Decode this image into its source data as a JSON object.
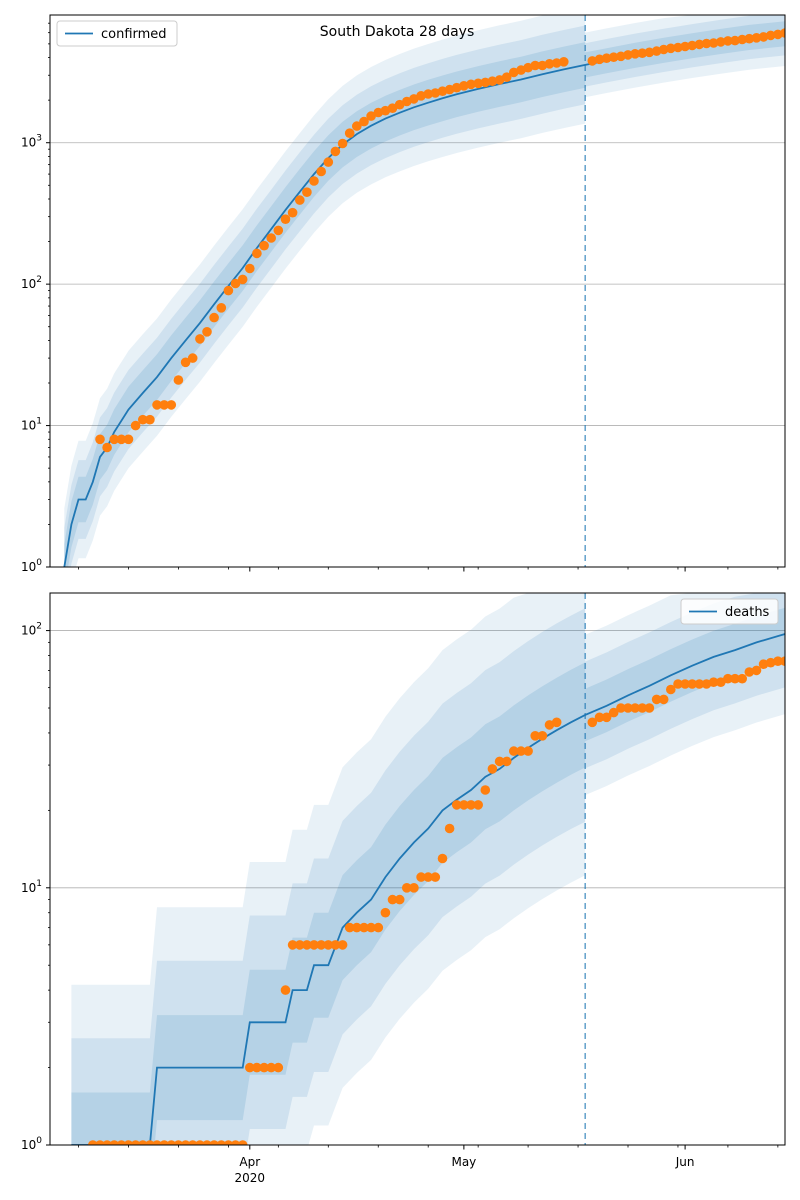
{
  "title": "South Dakota 28 days",
  "colors": {
    "model": "#1f77b4",
    "observed": "#ff7f0e",
    "band": "#1f77b4",
    "grid": "#b0b0b0",
    "forecast_line": "#1f77b4"
  },
  "x_ticks": [
    {
      "date": "2020-04-01",
      "label": "Apr",
      "sub": "2020"
    },
    {
      "date": "2020-05-01",
      "label": "May",
      "sub": ""
    },
    {
      "date": "2020-06-01",
      "label": "Jun",
      "sub": ""
    }
  ],
  "forecast_start": "2020-05-18",
  "chart_data": [
    {
      "type": "line",
      "legend": "confirmed",
      "legend_loc": "upper left",
      "yscale": "log",
      "xlim": [
        "2020-03-04",
        "2020-06-15"
      ],
      "ylim": [
        1,
        8000
      ],
      "yticks": [
        {
          "value": 1,
          "label": "10",
          "exp": "0"
        },
        {
          "value": 10,
          "label": "10",
          "exp": "1"
        },
        {
          "value": 100,
          "label": "10",
          "exp": "2"
        },
        {
          "value": 1000,
          "label": "10",
          "exp": "3"
        }
      ],
      "model_median": [
        [
          "2020-03-06",
          1
        ],
        [
          "2020-03-07",
          2
        ],
        [
          "2020-03-08",
          3
        ],
        [
          "2020-03-09",
          3
        ],
        [
          "2020-03-10",
          4
        ],
        [
          "2020-03-11",
          6
        ],
        [
          "2020-03-12",
          7
        ],
        [
          "2020-03-13",
          9
        ],
        [
          "2020-03-15",
          13
        ],
        [
          "2020-03-17",
          17
        ],
        [
          "2020-03-19",
          22
        ],
        [
          "2020-03-21",
          30
        ],
        [
          "2020-03-23",
          40
        ],
        [
          "2020-03-25",
          53
        ],
        [
          "2020-03-27",
          72
        ],
        [
          "2020-03-29",
          97
        ],
        [
          "2020-03-31",
          130
        ],
        [
          "2020-04-02",
          180
        ],
        [
          "2020-04-04",
          245
        ],
        [
          "2020-04-06",
          335
        ],
        [
          "2020-04-08",
          450
        ],
        [
          "2020-04-10",
          600
        ],
        [
          "2020-04-12",
          780
        ],
        [
          "2020-04-14",
          970
        ],
        [
          "2020-04-16",
          1150
        ],
        [
          "2020-04-18",
          1320
        ],
        [
          "2020-04-20",
          1480
        ],
        [
          "2020-04-22",
          1630
        ],
        [
          "2020-04-24",
          1780
        ],
        [
          "2020-04-26",
          1920
        ],
        [
          "2020-04-28",
          2060
        ],
        [
          "2020-04-30",
          2200
        ],
        [
          "2020-05-03",
          2400
        ],
        [
          "2020-05-06",
          2600
        ],
        [
          "2020-05-09",
          2800
        ],
        [
          "2020-05-12",
          3050
        ],
        [
          "2020-05-15",
          3300
        ],
        [
          "2020-05-18",
          3550
        ],
        [
          "2020-05-21",
          3800
        ],
        [
          "2020-05-25",
          4150
        ],
        [
          "2020-05-29",
          4500
        ],
        [
          "2020-06-02",
          4850
        ],
        [
          "2020-06-06",
          5200
        ],
        [
          "2020-06-10",
          5550
        ],
        [
          "2020-06-15",
          5900
        ]
      ],
      "observed": [
        [
          "2020-03-11",
          8
        ],
        [
          "2020-03-12",
          7
        ],
        [
          "2020-03-13",
          8
        ],
        [
          "2020-03-14",
          8
        ],
        [
          "2020-03-15",
          8
        ],
        [
          "2020-03-16",
          10
        ],
        [
          "2020-03-17",
          11
        ],
        [
          "2020-03-18",
          11
        ],
        [
          "2020-03-19",
          14
        ],
        [
          "2020-03-20",
          14
        ],
        [
          "2020-03-21",
          14
        ],
        [
          "2020-03-22",
          21
        ],
        [
          "2020-03-23",
          28
        ],
        [
          "2020-03-24",
          30
        ],
        [
          "2020-03-25",
          41
        ],
        [
          "2020-03-26",
          46
        ],
        [
          "2020-03-27",
          58
        ],
        [
          "2020-03-28",
          68
        ],
        [
          "2020-03-29",
          90
        ],
        [
          "2020-03-30",
          101
        ],
        [
          "2020-03-31",
          108
        ],
        [
          "2020-04-01",
          129
        ],
        [
          "2020-04-02",
          165
        ],
        [
          "2020-04-03",
          187
        ],
        [
          "2020-04-04",
          212
        ],
        [
          "2020-04-05",
          240
        ],
        [
          "2020-04-06",
          288
        ],
        [
          "2020-04-07",
          320
        ],
        [
          "2020-04-08",
          393
        ],
        [
          "2020-04-09",
          447
        ],
        [
          "2020-04-10",
          536
        ],
        [
          "2020-04-11",
          626
        ],
        [
          "2020-04-12",
          730
        ],
        [
          "2020-04-13",
          868
        ],
        [
          "2020-04-14",
          988
        ],
        [
          "2020-04-15",
          1168
        ],
        [
          "2020-04-16",
          1311
        ],
        [
          "2020-04-17",
          1411
        ],
        [
          "2020-04-18",
          1542
        ],
        [
          "2020-04-19",
          1635
        ],
        [
          "2020-04-20",
          1685
        ],
        [
          "2020-04-21",
          1755
        ],
        [
          "2020-04-22",
          1858
        ],
        [
          "2020-04-23",
          1956
        ],
        [
          "2020-04-24",
          2040
        ],
        [
          "2020-04-25",
          2147
        ],
        [
          "2020-04-26",
          2212
        ],
        [
          "2020-04-27",
          2245
        ],
        [
          "2020-04-28",
          2313
        ],
        [
          "2020-04-29",
          2373
        ],
        [
          "2020-04-30",
          2449
        ],
        [
          "2020-05-01",
          2525
        ],
        [
          "2020-05-02",
          2588
        ],
        [
          "2020-05-03",
          2631
        ],
        [
          "2020-05-04",
          2668
        ],
        [
          "2020-05-05",
          2721
        ],
        [
          "2020-05-06",
          2779
        ],
        [
          "2020-05-07",
          2905
        ],
        [
          "2020-05-08",
          3144
        ],
        [
          "2020-05-09",
          3262
        ],
        [
          "2020-05-10",
          3393
        ],
        [
          "2020-05-11",
          3517
        ],
        [
          "2020-05-12",
          3517
        ],
        [
          "2020-05-13",
          3614
        ],
        [
          "2020-05-14",
          3663
        ],
        [
          "2020-05-15",
          3732
        ],
        [
          "2020-05-19",
          3792
        ],
        [
          "2020-05-20",
          3887
        ],
        [
          "2020-05-21",
          3959
        ],
        [
          "2020-05-22",
          4027
        ],
        [
          "2020-05-23",
          4085
        ],
        [
          "2020-05-24",
          4177
        ],
        [
          "2020-05-25",
          4250
        ],
        [
          "2020-05-26",
          4293
        ],
        [
          "2020-05-27",
          4356
        ],
        [
          "2020-05-28",
          4444
        ],
        [
          "2020-05-29",
          4563
        ],
        [
          "2020-05-30",
          4653
        ],
        [
          "2020-05-31",
          4710
        ],
        [
          "2020-06-01",
          4793
        ],
        [
          "2020-06-02",
          4866
        ],
        [
          "2020-06-03",
          4960
        ],
        [
          "2020-06-04",
          5034
        ],
        [
          "2020-06-05",
          5068
        ],
        [
          "2020-06-06",
          5162
        ],
        [
          "2020-06-07",
          5247
        ],
        [
          "2020-06-08",
          5277
        ],
        [
          "2020-06-09",
          5367
        ],
        [
          "2020-06-10",
          5438
        ],
        [
          "2020-06-11",
          5523
        ],
        [
          "2020-06-12",
          5604
        ],
        [
          "2020-06-13",
          5742
        ],
        [
          "2020-06-14",
          5833
        ],
        [
          "2020-06-15",
          5966
        ]
      ]
    },
    {
      "type": "line",
      "legend": "deaths",
      "legend_loc": "upper right",
      "yscale": "log",
      "xlim": [
        "2020-03-04",
        "2020-06-15"
      ],
      "ylim": [
        1,
        140
      ],
      "yticks": [
        {
          "value": 1,
          "label": "10",
          "exp": "0"
        },
        {
          "value": 10,
          "label": "10",
          "exp": "1"
        },
        {
          "value": 100,
          "label": "10",
          "exp": "2"
        }
      ],
      "model_median": [
        [
          "2020-03-07",
          1
        ],
        [
          "2020-03-18",
          1
        ],
        [
          "2020-03-19",
          2
        ],
        [
          "2020-03-31",
          2
        ],
        [
          "2020-04-01",
          3
        ],
        [
          "2020-04-06",
          3
        ],
        [
          "2020-04-07",
          4
        ],
        [
          "2020-04-09",
          4
        ],
        [
          "2020-04-10",
          5
        ],
        [
          "2020-04-12",
          5
        ],
        [
          "2020-04-14",
          7
        ],
        [
          "2020-04-16",
          8
        ],
        [
          "2020-04-18",
          9
        ],
        [
          "2020-04-20",
          11
        ],
        [
          "2020-04-22",
          13
        ],
        [
          "2020-04-24",
          15
        ],
        [
          "2020-04-26",
          17
        ],
        [
          "2020-04-28",
          20
        ],
        [
          "2020-04-30",
          22
        ],
        [
          "2020-05-02",
          24
        ],
        [
          "2020-05-04",
          27
        ],
        [
          "2020-05-06",
          29
        ],
        [
          "2020-05-08",
          32
        ],
        [
          "2020-05-10",
          35
        ],
        [
          "2020-05-12",
          38
        ],
        [
          "2020-05-14",
          41
        ],
        [
          "2020-05-16",
          44
        ],
        [
          "2020-05-18",
          47
        ],
        [
          "2020-05-21",
          51
        ],
        [
          "2020-05-24",
          56
        ],
        [
          "2020-05-27",
          61
        ],
        [
          "2020-05-30",
          67
        ],
        [
          "2020-06-02",
          73
        ],
        [
          "2020-06-05",
          79
        ],
        [
          "2020-06-08",
          84
        ],
        [
          "2020-06-11",
          90
        ],
        [
          "2020-06-15",
          97
        ]
      ],
      "observed": [
        [
          "2020-03-10",
          1
        ],
        [
          "2020-03-11",
          1
        ],
        [
          "2020-03-12",
          1
        ],
        [
          "2020-03-13",
          1
        ],
        [
          "2020-03-14",
          1
        ],
        [
          "2020-03-15",
          1
        ],
        [
          "2020-03-16",
          1
        ],
        [
          "2020-03-17",
          1
        ],
        [
          "2020-03-18",
          1
        ],
        [
          "2020-03-19",
          1
        ],
        [
          "2020-03-20",
          1
        ],
        [
          "2020-03-21",
          1
        ],
        [
          "2020-03-22",
          1
        ],
        [
          "2020-03-23",
          1
        ],
        [
          "2020-03-24",
          1
        ],
        [
          "2020-03-25",
          1
        ],
        [
          "2020-03-26",
          1
        ],
        [
          "2020-03-27",
          1
        ],
        [
          "2020-03-28",
          1
        ],
        [
          "2020-03-29",
          1
        ],
        [
          "2020-03-30",
          1
        ],
        [
          "2020-03-31",
          1
        ],
        [
          "2020-04-01",
          2
        ],
        [
          "2020-04-02",
          2
        ],
        [
          "2020-04-03",
          2
        ],
        [
          "2020-04-04",
          2
        ],
        [
          "2020-04-05",
          2
        ],
        [
          "2020-04-06",
          4
        ],
        [
          "2020-04-07",
          6
        ],
        [
          "2020-04-08",
          6
        ],
        [
          "2020-04-09",
          6
        ],
        [
          "2020-04-10",
          6
        ],
        [
          "2020-04-11",
          6
        ],
        [
          "2020-04-12",
          6
        ],
        [
          "2020-04-13",
          6
        ],
        [
          "2020-04-14",
          6
        ],
        [
          "2020-04-15",
          7
        ],
        [
          "2020-04-16",
          7
        ],
        [
          "2020-04-17",
          7
        ],
        [
          "2020-04-18",
          7
        ],
        [
          "2020-04-19",
          7
        ],
        [
          "2020-04-20",
          8
        ],
        [
          "2020-04-21",
          9
        ],
        [
          "2020-04-22",
          9
        ],
        [
          "2020-04-23",
          10
        ],
        [
          "2020-04-24",
          10
        ],
        [
          "2020-04-25",
          11
        ],
        [
          "2020-04-26",
          11
        ],
        [
          "2020-04-27",
          11
        ],
        [
          "2020-04-28",
          13
        ],
        [
          "2020-04-29",
          17
        ],
        [
          "2020-04-30",
          21
        ],
        [
          "2020-05-01",
          21
        ],
        [
          "2020-05-02",
          21
        ],
        [
          "2020-05-03",
          21
        ],
        [
          "2020-05-04",
          24
        ],
        [
          "2020-05-05",
          29
        ],
        [
          "2020-05-06",
          31
        ],
        [
          "2020-05-07",
          31
        ],
        [
          "2020-05-08",
          34
        ],
        [
          "2020-05-09",
          34
        ],
        [
          "2020-05-10",
          34
        ],
        [
          "2020-05-11",
          39
        ],
        [
          "2020-05-12",
          39
        ],
        [
          "2020-05-13",
          43
        ],
        [
          "2020-05-14",
          44
        ],
        [
          "2020-05-19",
          44
        ],
        [
          "2020-05-20",
          46
        ],
        [
          "2020-05-21",
          46
        ],
        [
          "2020-05-22",
          48
        ],
        [
          "2020-05-23",
          50
        ],
        [
          "2020-05-24",
          50
        ],
        [
          "2020-05-25",
          50
        ],
        [
          "2020-05-26",
          50
        ],
        [
          "2020-05-27",
          50
        ],
        [
          "2020-05-28",
          54
        ],
        [
          "2020-05-29",
          54
        ],
        [
          "2020-05-30",
          59
        ],
        [
          "2020-05-31",
          62
        ],
        [
          "2020-06-01",
          62
        ],
        [
          "2020-06-02",
          62
        ],
        [
          "2020-06-03",
          62
        ],
        [
          "2020-06-04",
          62
        ],
        [
          "2020-06-05",
          63
        ],
        [
          "2020-06-06",
          63
        ],
        [
          "2020-06-07",
          65
        ],
        [
          "2020-06-08",
          65
        ],
        [
          "2020-06-09",
          65
        ],
        [
          "2020-06-10",
          69
        ],
        [
          "2020-06-11",
          70
        ],
        [
          "2020-06-12",
          74
        ],
        [
          "2020-06-13",
          75
        ],
        [
          "2020-06-14",
          76
        ],
        [
          "2020-06-15",
          76
        ]
      ]
    }
  ]
}
